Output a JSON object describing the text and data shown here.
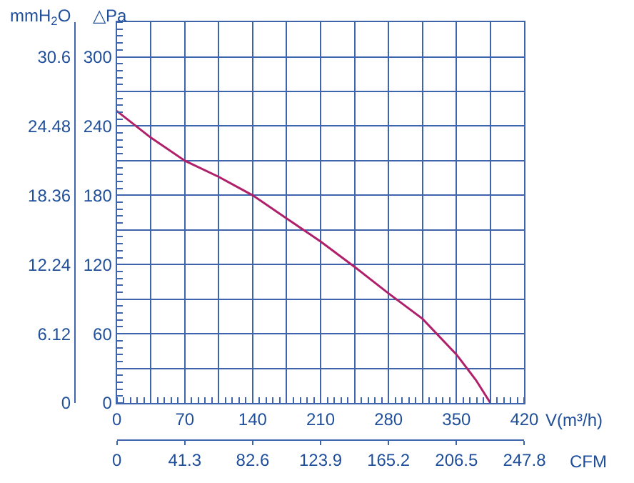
{
  "chart_data": {
    "type": "line",
    "xlabel": "V(m³/h)",
    "x2label": "CFM",
    "ylabel": "△Pa",
    "y2label": "mmH$_{2}$O",
    "x": [
      0,
      35,
      70,
      105,
      140,
      175,
      210,
      245,
      280,
      315,
      350,
      370,
      385
    ],
    "series": [
      {
        "color": "#b0206a",
        "values": [
          253,
          230,
          210,
          196,
          180,
          160,
          140,
          118,
          95,
          73,
          42,
          20,
          0
        ]
      }
    ],
    "xlim": [
      0,
      420
    ],
    "xticks": [
      0,
      {
        "value": 35,
        "label": null
      },
      70,
      {
        "value": 105,
        "label": null
      },
      140,
      {
        "value": 175,
        "label": null
      },
      210,
      {
        "value": 245,
        "label": null
      },
      280,
      {
        "value": 315,
        "label": null
      },
      350,
      {
        "value": 385,
        "label": null
      },
      420
    ],
    "x2lim": [
      0,
      247.8
    ],
    "x2ticks": [
      0,
      41.3,
      82.6,
      123.9,
      165.2,
      206.5,
      247.8
    ],
    "ylim": [
      0,
      330
    ],
    "yticks": [
      0,
      {
        "value": 30,
        "label": null
      },
      60,
      {
        "value": 90,
        "label": null
      },
      120,
      {
        "value": 150,
        "label": null
      },
      180,
      {
        "value": 210,
        "label": null
      },
      240,
      {
        "value": 270,
        "label": null
      },
      300
    ],
    "y2lim": [
      0,
      33.66
    ],
    "y2ticks": [
      0,
      6.12,
      12.24,
      18.36,
      24.48,
      30.6
    ],
    "grid": true,
    "legend": false,
    "line_style": "solid",
    "marker": "none"
  }
}
